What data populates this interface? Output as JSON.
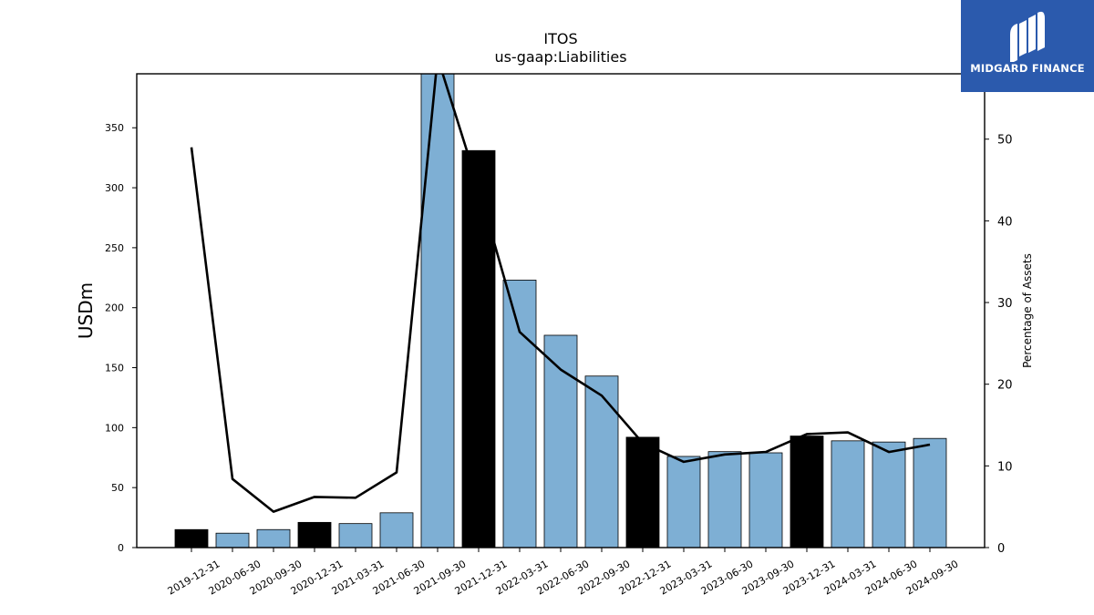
{
  "chart_data": {
    "type": "bar",
    "title": "ITOS",
    "subtitle": "us-gaap:Liabilities",
    "ylabel": "USDm",
    "ylabel_right": "Percentage of Assets",
    "ylim": [
      0,
      395
    ],
    "ylim_right": [
      0,
      58
    ],
    "yticks": [
      0,
      50,
      100,
      150,
      200,
      250,
      300,
      350
    ],
    "yticks_right": [
      0,
      10,
      20,
      30,
      40,
      50
    ],
    "categories": [
      "2019-12-31",
      "2020-06-30",
      "2020-09-30",
      "2020-12-31",
      "2021-03-31",
      "2021-06-30",
      "2021-09-30",
      "2021-12-31",
      "2022-03-31",
      "2022-06-30",
      "2022-09-30",
      "2022-12-31",
      "2023-03-31",
      "2023-06-30",
      "2023-09-30",
      "2023-12-31",
      "2024-03-31",
      "2024-06-30",
      "2024-09-30"
    ],
    "series": [
      {
        "type": "bar",
        "values": [
          15,
          12,
          15,
          21,
          20,
          29,
          400,
          331,
          223,
          177,
          143,
          92,
          76,
          80,
          79,
          93,
          89,
          88,
          91
        ],
        "highlight": [
          true,
          false,
          false,
          true,
          false,
          false,
          false,
          true,
          false,
          false,
          false,
          true,
          false,
          false,
          false,
          true,
          false,
          false,
          false
        ]
      },
      {
        "type": "line",
        "axis": "right",
        "values": [
          49,
          8.4,
          4.4,
          6.2,
          6.1,
          9.2,
          60,
          44,
          26.4,
          21.8,
          18.6,
          12.8,
          10.5,
          11.4,
          11.7,
          13.9,
          14.1,
          11.7,
          12.6
        ]
      }
    ],
    "colors": {
      "bar": "#7eafd4",
      "bar_highlight": "#000000",
      "line": "#000000"
    },
    "grid": false,
    "legend": "none"
  },
  "logo": {
    "text": "MIDGARD FINANCE",
    "color": "#2b5aad"
  }
}
